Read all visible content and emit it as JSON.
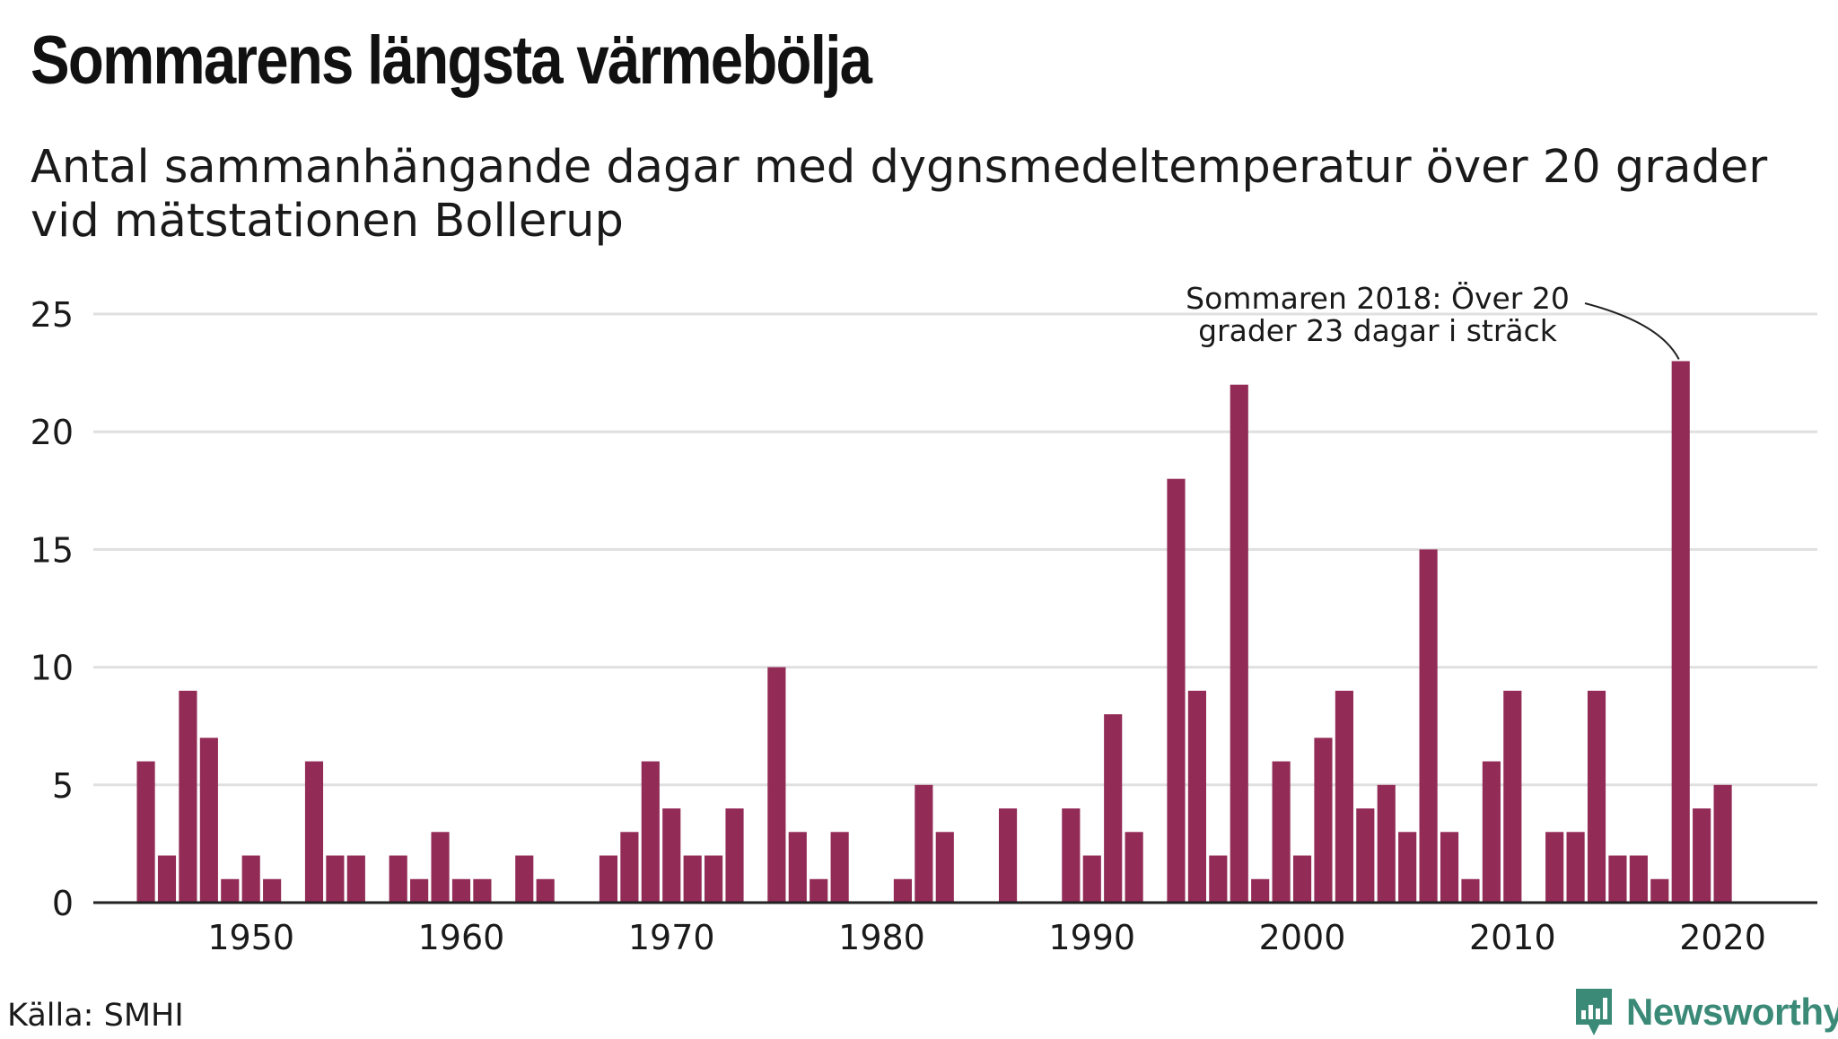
{
  "title": "Sommarens längsta värmebölja",
  "subtitle": {
    "line1": "Antal sammanhängande dagar med dygnsmedeltemperatur över 20 grader",
    "line2": "vid mätstationen Bollerup"
  },
  "source": "Källa: SMHI",
  "brand": "Newsworthy",
  "colors": {
    "bar": "#922b56",
    "grid": "#e0e0e0",
    "axis": "#222222",
    "text": "#1a1a1a",
    "brand": "#3b8a78"
  },
  "chart_data": {
    "type": "bar",
    "title": "Sommarens längsta värmebölja",
    "xlabel": "",
    "ylabel": "",
    "ylim": [
      0,
      25
    ],
    "xlim": [
      1942.5,
      2024.5
    ],
    "grid": true,
    "x_ticks": [
      1950,
      1960,
      1970,
      1980,
      1990,
      2000,
      2010,
      2020
    ],
    "y_ticks": [
      0,
      5,
      10,
      15,
      20,
      25
    ],
    "categories": [
      1945,
      1946,
      1947,
      1948,
      1949,
      1950,
      1951,
      1952,
      1953,
      1954,
      1955,
      1956,
      1957,
      1958,
      1959,
      1960,
      1961,
      1962,
      1963,
      1964,
      1965,
      1966,
      1967,
      1968,
      1969,
      1970,
      1971,
      1972,
      1973,
      1974,
      1975,
      1976,
      1977,
      1978,
      1979,
      1980,
      1981,
      1982,
      1983,
      1984,
      1985,
      1986,
      1987,
      1988,
      1989,
      1990,
      1991,
      1992,
      1993,
      1994,
      1995,
      1996,
      1997,
      1998,
      1999,
      2000,
      2001,
      2002,
      2003,
      2004,
      2005,
      2006,
      2007,
      2008,
      2009,
      2010,
      2011,
      2012,
      2013,
      2014,
      2015,
      2016,
      2017,
      2018,
      2019,
      2020
    ],
    "values": [
      6,
      2,
      9,
      7,
      1,
      2,
      1,
      0,
      6,
      2,
      2,
      0,
      2,
      1,
      3,
      1,
      1,
      0,
      2,
      1,
      0,
      0,
      2,
      3,
      6,
      4,
      2,
      2,
      4,
      0,
      10,
      3,
      1,
      3,
      0,
      0,
      1,
      5,
      3,
      0,
      0,
      4,
      0,
      0,
      4,
      2,
      8,
      3,
      0,
      18,
      9,
      2,
      22,
      1,
      6,
      2,
      7,
      9,
      4,
      5,
      3,
      15,
      3,
      1,
      6,
      9,
      0,
      3,
      3,
      9,
      2,
      2,
      1,
      23,
      4,
      5
    ],
    "annotation": {
      "line1": "Sommaren 2018: Över 20",
      "line2": "grader 23 dagar i sträck",
      "x": 2018,
      "y": 23
    }
  }
}
